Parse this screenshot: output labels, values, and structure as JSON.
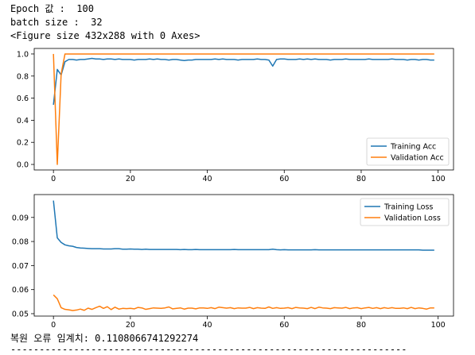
{
  "output": {
    "line1": "Epoch 값 :  100",
    "line2": "batch size :  32",
    "line3": "<Figure size 432x288 with 0 Axes>",
    "line4": "복원 오류 임계치: 0.1108066741292274",
    "line5": "---------------------------------------------------------------------"
  },
  "colors": {
    "training": "#1f77b4",
    "validation": "#ff7f0e"
  },
  "chart_data": [
    {
      "type": "line",
      "xlim": [
        -5,
        104
      ],
      "ylim": [
        -0.05,
        1.05
      ],
      "xticks": [
        0,
        20,
        40,
        60,
        80,
        100
      ],
      "yticks": [
        0.0,
        0.2,
        0.4,
        0.6,
        0.8,
        1.0
      ],
      "xtick_labels": [
        "0",
        "20",
        "40",
        "60",
        "80",
        "100"
      ],
      "ytick_labels": [
        "0.0",
        "0.2",
        "0.4",
        "0.6",
        "0.8",
        "1.0"
      ],
      "legend": "lower-right",
      "series": [
        {
          "name": "Training Acc",
          "x": [
            0,
            1,
            2,
            3,
            4,
            5,
            6,
            7,
            8,
            9,
            10,
            11,
            12,
            13,
            14,
            15,
            16,
            17,
            18,
            19,
            20,
            21,
            22,
            23,
            24,
            25,
            26,
            27,
            28,
            29,
            30,
            31,
            32,
            33,
            34,
            35,
            36,
            37,
            38,
            39,
            40,
            41,
            42,
            43,
            44,
            45,
            46,
            47,
            48,
            49,
            50,
            51,
            52,
            53,
            54,
            55,
            56,
            57,
            58,
            59,
            60,
            61,
            62,
            63,
            64,
            65,
            66,
            67,
            68,
            69,
            70,
            71,
            72,
            73,
            74,
            75,
            76,
            77,
            78,
            79,
            80,
            81,
            82,
            83,
            84,
            85,
            86,
            87,
            88,
            89,
            90,
            91,
            92,
            93,
            94,
            95,
            96,
            97,
            98,
            99
          ],
          "values": [
            0.54,
            0.86,
            0.81,
            0.93,
            0.95,
            0.95,
            0.945,
            0.95,
            0.95,
            0.955,
            0.96,
            0.955,
            0.955,
            0.95,
            0.955,
            0.955,
            0.95,
            0.955,
            0.95,
            0.95,
            0.95,
            0.945,
            0.95,
            0.95,
            0.95,
            0.955,
            0.95,
            0.955,
            0.95,
            0.95,
            0.945,
            0.95,
            0.95,
            0.945,
            0.94,
            0.945,
            0.945,
            0.95,
            0.95,
            0.95,
            0.95,
            0.95,
            0.955,
            0.95,
            0.955,
            0.95,
            0.95,
            0.95,
            0.945,
            0.95,
            0.95,
            0.95,
            0.95,
            0.955,
            0.95,
            0.95,
            0.945,
            0.89,
            0.95,
            0.955,
            0.955,
            0.95,
            0.95,
            0.95,
            0.955,
            0.95,
            0.955,
            0.95,
            0.955,
            0.95,
            0.95,
            0.95,
            0.945,
            0.95,
            0.95,
            0.95,
            0.955,
            0.95,
            0.95,
            0.95,
            0.95,
            0.95,
            0.955,
            0.95,
            0.95,
            0.95,
            0.95,
            0.95,
            0.955,
            0.95,
            0.95,
            0.95,
            0.945,
            0.95,
            0.95,
            0.945,
            0.95,
            0.95,
            0.945,
            0.945
          ]
        },
        {
          "name": "Validation Acc",
          "x": [
            0,
            1,
            2,
            3,
            4,
            5,
            6,
            7,
            8,
            9,
            10,
            11,
            12,
            13,
            14,
            15,
            16,
            17,
            18,
            19,
            20,
            21,
            22,
            23,
            24,
            25,
            26,
            27,
            28,
            29,
            30,
            31,
            32,
            33,
            34,
            35,
            36,
            37,
            38,
            39,
            40,
            41,
            42,
            43,
            44,
            45,
            46,
            47,
            48,
            49,
            50,
            51,
            52,
            53,
            54,
            55,
            56,
            57,
            58,
            59,
            60,
            61,
            62,
            63,
            64,
            65,
            66,
            67,
            68,
            69,
            70,
            71,
            72,
            73,
            74,
            75,
            76,
            77,
            78,
            79,
            80,
            81,
            82,
            83,
            84,
            85,
            86,
            87,
            88,
            89,
            90,
            91,
            92,
            93,
            94,
            95,
            96,
            97,
            98,
            99
          ],
          "values": [
            1.0,
            0.0,
            0.82,
            1.0,
            1.0,
            1.0,
            1.0,
            1.0,
            1.0,
            1.0,
            1.0,
            1.0,
            1.0,
            1.0,
            1.0,
            1.0,
            1.0,
            1.0,
            1.0,
            1.0,
            1.0,
            1.0,
            1.0,
            1.0,
            1.0,
            1.0,
            1.0,
            1.0,
            1.0,
            1.0,
            1.0,
            1.0,
            1.0,
            1.0,
            1.0,
            1.0,
            1.0,
            1.0,
            1.0,
            1.0,
            1.0,
            1.0,
            1.0,
            1.0,
            1.0,
            1.0,
            1.0,
            1.0,
            1.0,
            1.0,
            1.0,
            1.0,
            1.0,
            1.0,
            1.0,
            1.0,
            1.0,
            1.0,
            1.0,
            1.0,
            1.0,
            1.0,
            1.0,
            1.0,
            1.0,
            1.0,
            1.0,
            1.0,
            1.0,
            1.0,
            1.0,
            1.0,
            1.0,
            1.0,
            1.0,
            1.0,
            1.0,
            1.0,
            1.0,
            1.0,
            1.0,
            1.0,
            1.0,
            1.0,
            1.0,
            1.0,
            1.0,
            1.0,
            1.0,
            1.0,
            1.0,
            1.0,
            1.0,
            1.0,
            1.0,
            1.0,
            1.0,
            1.0,
            1.0,
            1.0
          ]
        }
      ]
    },
    {
      "type": "line",
      "xlim": [
        -5,
        104
      ],
      "ylim": [
        0.049,
        0.0995
      ],
      "xticks": [
        0,
        20,
        40,
        60,
        80,
        100
      ],
      "yticks": [
        0.05,
        0.06,
        0.07,
        0.08,
        0.09
      ],
      "xtick_labels": [
        "0",
        "20",
        "40",
        "60",
        "80",
        "100"
      ],
      "ytick_labels": [
        "0.05",
        "0.06",
        "0.07",
        "0.08",
        "0.09"
      ],
      "legend": "top-right",
      "series": [
        {
          "name": "Training Loss",
          "x": [
            0,
            1,
            2,
            3,
            4,
            5,
            6,
            7,
            8,
            9,
            10,
            11,
            12,
            13,
            14,
            15,
            16,
            17,
            18,
            19,
            20,
            21,
            22,
            23,
            24,
            25,
            26,
            27,
            28,
            29,
            30,
            31,
            32,
            33,
            34,
            35,
            36,
            37,
            38,
            39,
            40,
            41,
            42,
            43,
            44,
            45,
            46,
            47,
            48,
            49,
            50,
            51,
            52,
            53,
            54,
            55,
            56,
            57,
            58,
            59,
            60,
            61,
            62,
            63,
            64,
            65,
            66,
            67,
            68,
            69,
            70,
            71,
            72,
            73,
            74,
            75,
            76,
            77,
            78,
            79,
            80,
            81,
            82,
            83,
            84,
            85,
            86,
            87,
            88,
            89,
            90,
            91,
            92,
            93,
            94,
            95,
            96,
            97,
            98,
            99
          ],
          "values": [
            0.097,
            0.0815,
            0.0796,
            0.0786,
            0.0782,
            0.078,
            0.0775,
            0.0773,
            0.0772,
            0.0771,
            0.077,
            0.077,
            0.077,
            0.0769,
            0.0769,
            0.0769,
            0.077,
            0.077,
            0.0768,
            0.0768,
            0.0769,
            0.0768,
            0.0768,
            0.0767,
            0.0768,
            0.0767,
            0.0767,
            0.0767,
            0.0767,
            0.0767,
            0.0767,
            0.0767,
            0.0767,
            0.0766,
            0.0767,
            0.0766,
            0.0766,
            0.0767,
            0.0766,
            0.0766,
            0.0766,
            0.0766,
            0.0766,
            0.0766,
            0.0766,
            0.0766,
            0.0766,
            0.0767,
            0.0766,
            0.0766,
            0.0766,
            0.0766,
            0.0766,
            0.0766,
            0.0766,
            0.0766,
            0.0766,
            0.0768,
            0.0766,
            0.0765,
            0.0766,
            0.0765,
            0.0765,
            0.0765,
            0.0765,
            0.0765,
            0.0765,
            0.0765,
            0.0766,
            0.0765,
            0.0765,
            0.0765,
            0.0765,
            0.0765,
            0.0765,
            0.0765,
            0.0765,
            0.0765,
            0.0765,
            0.0765,
            0.0765,
            0.0765,
            0.0765,
            0.0765,
            0.0765,
            0.0765,
            0.0765,
            0.0765,
            0.0765,
            0.0765,
            0.0765,
            0.0765,
            0.0765,
            0.0765,
            0.0765,
            0.0765,
            0.0764,
            0.0764,
            0.0764,
            0.0764
          ]
        },
        {
          "name": "Validation Loss",
          "x": [
            0,
            1,
            2,
            3,
            4,
            5,
            6,
            7,
            8,
            9,
            10,
            11,
            12,
            13,
            14,
            15,
            16,
            17,
            18,
            19,
            20,
            21,
            22,
            23,
            24,
            25,
            26,
            27,
            28,
            29,
            30,
            31,
            32,
            33,
            34,
            35,
            36,
            37,
            38,
            39,
            40,
            41,
            42,
            43,
            44,
            45,
            46,
            47,
            48,
            49,
            50,
            51,
            52,
            53,
            54,
            55,
            56,
            57,
            58,
            59,
            60,
            61,
            62,
            63,
            64,
            65,
            66,
            67,
            68,
            69,
            70,
            71,
            72,
            73,
            74,
            75,
            76,
            77,
            78,
            79,
            80,
            81,
            82,
            83,
            84,
            85,
            86,
            87,
            88,
            89,
            90,
            91,
            92,
            93,
            94,
            95,
            96,
            97,
            98,
            99
          ],
          "values": [
            0.0578,
            0.0562,
            0.0525,
            0.0518,
            0.0516,
            0.0513,
            0.0515,
            0.0519,
            0.0514,
            0.0523,
            0.0518,
            0.0525,
            0.0531,
            0.0522,
            0.0529,
            0.0517,
            0.0527,
            0.0519,
            0.0522,
            0.0521,
            0.0522,
            0.052,
            0.0526,
            0.0524,
            0.0518,
            0.0521,
            0.0524,
            0.0523,
            0.0522,
            0.0524,
            0.0528,
            0.052,
            0.0522,
            0.0524,
            0.0519,
            0.0523,
            0.0523,
            0.052,
            0.0524,
            0.0524,
            0.0522,
            0.0525,
            0.0521,
            0.0527,
            0.0525,
            0.0523,
            0.0525,
            0.0521,
            0.0524,
            0.0523,
            0.0523,
            0.0526,
            0.0521,
            0.0525,
            0.0523,
            0.0522,
            0.0528,
            0.0522,
            0.0525,
            0.0522,
            0.0523,
            0.0525,
            0.0521,
            0.0526,
            0.0524,
            0.0523,
            0.0521,
            0.0526,
            0.0521,
            0.0527,
            0.0524,
            0.0523,
            0.0521,
            0.0525,
            0.0524,
            0.0523,
            0.0526,
            0.0521,
            0.0524,
            0.0525,
            0.0521,
            0.0524,
            0.0526,
            0.0522,
            0.0525,
            0.0521,
            0.0525,
            0.0522,
            0.0525,
            0.0522,
            0.0522,
            0.0524,
            0.0521,
            0.0526,
            0.0521,
            0.0524,
            0.0522,
            0.0519,
            0.0524,
            0.0524
          ]
        }
      ]
    }
  ]
}
